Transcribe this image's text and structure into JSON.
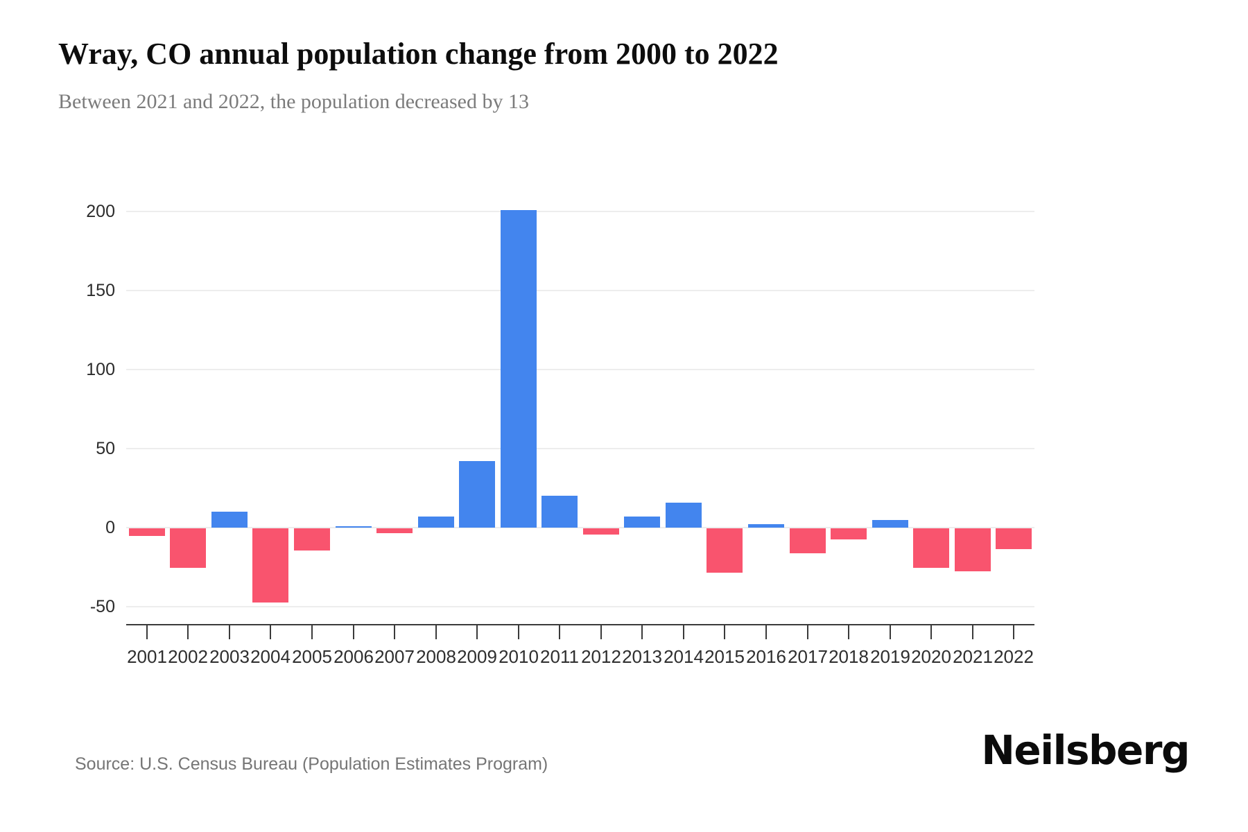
{
  "header": {
    "title": "Wray, CO annual population change from 2000 to 2022",
    "subtitle": "Between 2021 and 2022, the population decreased by 13"
  },
  "chart_data": {
    "type": "bar",
    "title": "Wray, CO annual population change from 2000 to 2022",
    "subtitle": "Between 2021 and 2022, the population decreased by 13",
    "categories": [
      "2001",
      "2002",
      "2003",
      "2004",
      "2005",
      "2006",
      "2007",
      "2008",
      "2009",
      "2010",
      "2011",
      "2012",
      "2013",
      "2014",
      "2015",
      "2016",
      "2017",
      "2018",
      "2019",
      "2020",
      "2021",
      "2022"
    ],
    "values": [
      -5,
      -25,
      10,
      -47,
      -14,
      1,
      -3,
      7,
      42,
      201,
      20,
      -4,
      7,
      16,
      -28,
      2,
      -16,
      -7,
      5,
      -25,
      -27,
      -13
    ],
    "series_name": "Annual population change",
    "xlabel": "",
    "ylabel": "",
    "yticks": [
      200,
      150,
      100,
      50,
      0,
      -50
    ],
    "ylim": [
      -60,
      215
    ],
    "grid": "horizontal",
    "legend_position": "none",
    "positive_color": "#4385ee",
    "negative_color": "#f9546e"
  },
  "footer": {
    "source": "Source: U.S. Census Bureau (Population Estimates Program)",
    "brand": "Neilsberg"
  }
}
